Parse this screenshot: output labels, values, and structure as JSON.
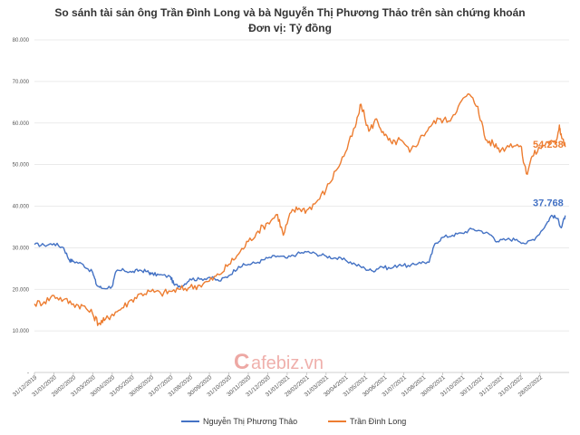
{
  "chart_data": {
    "type": "line",
    "title_line1": "So sánh tài sản ông Trần Đình Long và bà Nguyễn Thị Phương Thảo trên sàn chứng khoán",
    "title_line2": "Đơn vị: Tỷ đồng",
    "ylim": [
      0,
      80000
    ],
    "yticks": [
      "-",
      "10.000",
      "20.000",
      "30.000",
      "40.000",
      "50.000",
      "60.000",
      "70.000",
      "80.000"
    ],
    "ytick_values": [
      0,
      10000,
      20000,
      30000,
      40000,
      50000,
      60000,
      70000,
      80000
    ],
    "xlim": [
      0,
      27.5
    ],
    "categories": [
      "31/12/2019",
      "31/01/2020",
      "29/02/2020",
      "31/03/2020",
      "30/04/2020",
      "31/05/2020",
      "30/06/2020",
      "31/07/2020",
      "31/08/2020",
      "30/09/2020",
      "31/10/2020",
      "30/11/2020",
      "31/12/2020",
      "31/01/2021",
      "28/02/2021",
      "31/03/2021",
      "30/04/2021",
      "31/05/2021",
      "30/06/2021",
      "31/07/2021",
      "31/08/2021",
      "30/09/2021",
      "31/10/2021",
      "30/11/2021",
      "31/12/2021",
      "31/01/2022",
      "28/02/2022"
    ],
    "series": [
      {
        "name": "Nguyễn Thị Phương Thảo",
        "color": "#4472c4",
        "end_label": "37.768",
        "points": [
          [
            0,
            30800
          ],
          [
            0.5,
            30600
          ],
          [
            1,
            31000
          ],
          [
            1.5,
            30000
          ],
          [
            1.8,
            27000
          ],
          [
            2,
            26800
          ],
          [
            2.5,
            26000
          ],
          [
            3,
            24000
          ],
          [
            3.2,
            21000
          ],
          [
            3.5,
            20200
          ],
          [
            4,
            20700
          ],
          [
            4.2,
            24300
          ],
          [
            4.6,
            24600
          ],
          [
            5,
            24100
          ],
          [
            5.4,
            24600
          ],
          [
            5.8,
            24300
          ],
          [
            6,
            23700
          ],
          [
            6.4,
            23500
          ],
          [
            7,
            23000
          ],
          [
            7.2,
            21000
          ],
          [
            7.6,
            20800
          ],
          [
            8,
            22500
          ],
          [
            8.5,
            22400
          ],
          [
            9,
            22900
          ],
          [
            9.5,
            22000
          ],
          [
            10,
            23300
          ],
          [
            10.5,
            25500
          ],
          [
            11,
            26000
          ],
          [
            11.5,
            26500
          ],
          [
            12,
            27500
          ],
          [
            12.5,
            28000
          ],
          [
            13,
            27500
          ],
          [
            13.5,
            28500
          ],
          [
            14,
            29000
          ],
          [
            14.5,
            28500
          ],
          [
            15,
            28000
          ],
          [
            15.5,
            27500
          ],
          [
            16,
            27000
          ],
          [
            16.5,
            26000
          ],
          [
            17,
            25000
          ],
          [
            17.4,
            24400
          ],
          [
            17.8,
            25500
          ],
          [
            18.3,
            25000
          ],
          [
            18.8,
            26000
          ],
          [
            19.3,
            25500
          ],
          [
            19.8,
            26500
          ],
          [
            20.3,
            26500
          ],
          [
            20.6,
            31000
          ],
          [
            21,
            32500
          ],
          [
            21.5,
            33000
          ],
          [
            22,
            33500
          ],
          [
            22.5,
            34500
          ],
          [
            23,
            34000
          ],
          [
            23.5,
            33000
          ],
          [
            23.8,
            31500
          ],
          [
            24.3,
            32000
          ],
          [
            24.8,
            32000
          ],
          [
            25.3,
            31000
          ],
          [
            25.8,
            32500
          ],
          [
            26.3,
            35500
          ],
          [
            26.6,
            37800
          ],
          [
            26.9,
            37000
          ],
          [
            27.1,
            34800
          ],
          [
            27.3,
            37768
          ]
        ]
      },
      {
        "name": "Trần Đình Long",
        "color": "#ed7d31",
        "end_label": "54.238",
        "points": [
          [
            0,
            16500
          ],
          [
            0.5,
            17000
          ],
          [
            1,
            18500
          ],
          [
            1.5,
            17500
          ],
          [
            2,
            16500
          ],
          [
            2.5,
            16000
          ],
          [
            3,
            14000
          ],
          [
            3.3,
            11800
          ],
          [
            3.6,
            12500
          ],
          [
            4,
            14000
          ],
          [
            4.5,
            15500
          ],
          [
            5,
            17500
          ],
          [
            5.5,
            19000
          ],
          [
            6,
            19500
          ],
          [
            6.5,
            19000
          ],
          [
            7,
            19500
          ],
          [
            7.5,
            20000
          ],
          [
            8,
            20500
          ],
          [
            8.5,
            21000
          ],
          [
            9,
            22000
          ],
          [
            9.5,
            23500
          ],
          [
            10,
            26000
          ],
          [
            10.5,
            28500
          ],
          [
            11,
            31500
          ],
          [
            11.5,
            34000
          ],
          [
            12,
            36000
          ],
          [
            12.5,
            38000
          ],
          [
            12.8,
            33000
          ],
          [
            13.2,
            38500
          ],
          [
            13.6,
            39500
          ],
          [
            14,
            39000
          ],
          [
            14.5,
            41000
          ],
          [
            15,
            44000
          ],
          [
            15.5,
            48500
          ],
          [
            16,
            53000
          ],
          [
            16.5,
            59000
          ],
          [
            16.8,
            64500
          ],
          [
            17.2,
            58000
          ],
          [
            17.6,
            61000
          ],
          [
            18,
            57000
          ],
          [
            18.4,
            55000
          ],
          [
            18.8,
            56000
          ],
          [
            19.3,
            53000
          ],
          [
            19.8,
            56000
          ],
          [
            20.3,
            59000
          ],
          [
            20.8,
            61000
          ],
          [
            21.3,
            60500
          ],
          [
            21.8,
            64000
          ],
          [
            22.3,
            67000
          ],
          [
            22.8,
            64000
          ],
          [
            23.2,
            56000
          ],
          [
            23.6,
            55000
          ],
          [
            24,
            53500
          ],
          [
            24.5,
            55000
          ],
          [
            25,
            54500
          ],
          [
            25.3,
            47800
          ],
          [
            25.6,
            52000
          ],
          [
            26,
            54000
          ],
          [
            26.4,
            55500
          ],
          [
            26.8,
            55000
          ],
          [
            27,
            59500
          ],
          [
            27.1,
            57000
          ],
          [
            27.3,
            54238
          ]
        ]
      }
    ]
  },
  "watermark": {
    "first": "C",
    "rest": "afebiz.vn"
  }
}
